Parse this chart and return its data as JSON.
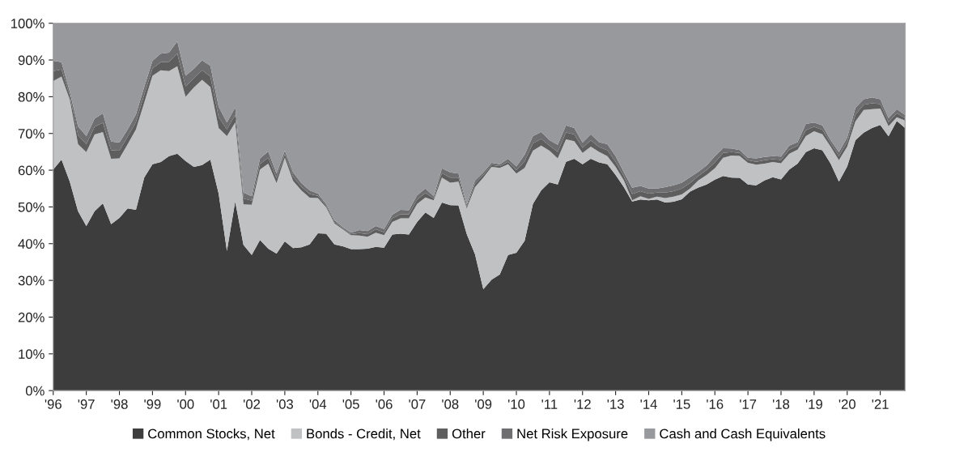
{
  "chart_data": {
    "type": "area",
    "stacked": true,
    "legend": "bottom",
    "grid": false,
    "x": [
      1996,
      1996.25,
      1996.5,
      1996.75,
      1997,
      1997.25,
      1997.5,
      1997.75,
      1998,
      1998.25,
      1998.5,
      1998.75,
      1999,
      1999.25,
      1999.5,
      1999.75,
      2000,
      2000.25,
      2000.5,
      2000.75,
      2001,
      2001.25,
      2001.5,
      2001.75,
      2002,
      2002.25,
      2002.5,
      2002.75,
      2003,
      2003.25,
      2003.5,
      2003.75,
      2004,
      2004.25,
      2004.5,
      2004.75,
      2005,
      2005.25,
      2005.5,
      2005.75,
      2006,
      2006.25,
      2006.5,
      2006.75,
      2007,
      2007.25,
      2007.5,
      2007.75,
      2008,
      2008.25,
      2008.5,
      2008.75,
      2009,
      2009.25,
      2009.5,
      2009.75,
      2010,
      2010.25,
      2010.5,
      2010.75,
      2011,
      2011.25,
      2011.5,
      2011.75,
      2012,
      2012.25,
      2012.5,
      2012.75,
      2013,
      2013.25,
      2013.5,
      2013.75,
      2014,
      2014.25,
      2014.5,
      2014.75,
      2015,
      2015.25,
      2015.5,
      2015.75,
      2016,
      2016.25,
      2016.5,
      2016.75,
      2017,
      2017.25,
      2017.5,
      2017.75,
      2018,
      2018.25,
      2018.5,
      2018.75,
      2019,
      2019.25,
      2019.5,
      2019.75,
      2020,
      2020.25,
      2020.5,
      2020.75,
      2021,
      2021.25,
      2021.5,
      2021.75
    ],
    "xlim": [
      1996,
      2021.75
    ],
    "xticks": [
      {
        "value": 1996,
        "label": "'96"
      },
      {
        "value": 1997,
        "label": "'97"
      },
      {
        "value": 1998,
        "label": "'98"
      },
      {
        "value": 1999,
        "label": "'99"
      },
      {
        "value": 2000,
        "label": "'00"
      },
      {
        "value": 2001,
        "label": "'01"
      },
      {
        "value": 2002,
        "label": "'02"
      },
      {
        "value": 2003,
        "label": "'03"
      },
      {
        "value": 2004,
        "label": "'04"
      },
      {
        "value": 2005,
        "label": "'05"
      },
      {
        "value": 2006,
        "label": "'06"
      },
      {
        "value": 2007,
        "label": "'07"
      },
      {
        "value": 2008,
        "label": "'08"
      },
      {
        "value": 2009,
        "label": "'09"
      },
      {
        "value": 2010,
        "label": "'10"
      },
      {
        "value": 2011,
        "label": "'11"
      },
      {
        "value": 2012,
        "label": "'12"
      },
      {
        "value": 2013,
        "label": "'13"
      },
      {
        "value": 2014,
        "label": "'14"
      },
      {
        "value": 2015,
        "label": "'15"
      },
      {
        "value": 2016,
        "label": "'16"
      },
      {
        "value": 2017,
        "label": "'17"
      },
      {
        "value": 2018,
        "label": "'18"
      },
      {
        "value": 2019,
        "label": "'19"
      },
      {
        "value": 2020,
        "label": "'20"
      },
      {
        "value": 2021,
        "label": "'21"
      }
    ],
    "ylim": [
      0,
      100
    ],
    "yticks": [
      {
        "value": 0,
        "label": "0%"
      },
      {
        "value": 10,
        "label": "10%"
      },
      {
        "value": 20,
        "label": "20%"
      },
      {
        "value": 30,
        "label": "30%"
      },
      {
        "value": 40,
        "label": "40%"
      },
      {
        "value": 50,
        "label": "50%"
      },
      {
        "value": 60,
        "label": "60%"
      },
      {
        "value": 70,
        "label": "70%"
      },
      {
        "value": 80,
        "label": "80%"
      },
      {
        "value": 90,
        "label": "90%"
      },
      {
        "value": 100,
        "label": "100%"
      }
    ],
    "series": [
      {
        "name": "Common Stocks, Net",
        "color": "#3d3d3d",
        "values": [
          60.2,
          62.9,
          56.9,
          48.8,
          44.8,
          48.8,
          51.0,
          45.3,
          47.0,
          49.6,
          49.2,
          58.0,
          61.6,
          62.2,
          63.8,
          64.5,
          62.5,
          60.9,
          61.4,
          62.9,
          53.6,
          38.0,
          51.5,
          39.7,
          36.9,
          41.0,
          38.6,
          37.3,
          40.6,
          38.8,
          39.0,
          39.8,
          42.8,
          42.7,
          39.8,
          39.3,
          38.5,
          38.5,
          38.6,
          39.1,
          38.9,
          42.5,
          42.7,
          42.5,
          45.9,
          48.5,
          47.0,
          51.2,
          50.5,
          50.4,
          42.6,
          37.1,
          27.6,
          30.2,
          31.6,
          36.9,
          37.5,
          40.8,
          50.8,
          54.5,
          56.7,
          56.1,
          62.3,
          63.1,
          61.6,
          63.1,
          62.1,
          61.6,
          58.7,
          55.4,
          51.5,
          52.0,
          51.8,
          52.0,
          51.2,
          51.4,
          52.1,
          54.2,
          55.3,
          56.1,
          57.4,
          58.4,
          58.0,
          57.9,
          56.1,
          55.9,
          57.2,
          58.1,
          57.5,
          60.2,
          61.8,
          64.9,
          66.0,
          65.4,
          61.8,
          56.9,
          61.0,
          68.2,
          70.2,
          71.5,
          72.3,
          69.2,
          73.4,
          71.5
        ]
      },
      {
        "name": "Bonds - Credit, Net",
        "color": "#c0c1c3",
        "values": [
          24.1,
          22.6,
          22.3,
          18.3,
          20.1,
          20.9,
          19.4,
          17.8,
          16.2,
          17.5,
          21.9,
          20.4,
          24.1,
          25.0,
          23.2,
          23.8,
          17.5,
          21.6,
          23.2,
          19.7,
          17.9,
          31.3,
          21.5,
          11.0,
          13.7,
          19.2,
          23.2,
          19.2,
          22.8,
          18.3,
          15.5,
          12.7,
          9.6,
          7.2,
          5.7,
          4.6,
          3.8,
          3.7,
          3.3,
          3.9,
          3.4,
          3.4,
          4.2,
          4.4,
          4.9,
          4.1,
          4.8,
          6.8,
          6.1,
          6.5,
          7.0,
          18.3,
          30.4,
          30.7,
          29.0,
          24.7,
          21.6,
          19.8,
          14.5,
          12.2,
          8.6,
          7.1,
          6.1,
          4.8,
          3.1,
          3.3,
          2.9,
          2.2,
          2.2,
          1.8,
          0.3,
          0.9,
          0.4,
          0.8,
          1.2,
          1.4,
          1.3,
          0.8,
          1.9,
          2.6,
          3.1,
          5.0,
          6.0,
          6.0,
          5.9,
          5.6,
          4.6,
          4.1,
          4.4,
          4.3,
          3.8,
          4.4,
          4.6,
          4.4,
          4.6,
          5.8,
          5.4,
          5.1,
          6.2,
          5.1,
          4.5,
          2.8,
          1.0,
          2.0
        ]
      },
      {
        "name": "Other",
        "color": "#5e5e5e",
        "values": [
          2.7,
          1.9,
          1.1,
          2.4,
          2.2,
          2.1,
          2.5,
          2.3,
          2.1,
          2.0,
          2.0,
          2.1,
          2.0,
          2.2,
          2.5,
          3.4,
          2.8,
          2.5,
          2.6,
          2.9,
          2.9,
          1.8,
          2.0,
          1.6,
          1.1,
          1.5,
          1.6,
          1.3,
          0.9,
          1.1,
          1.0,
          1.0,
          0.6,
          0.4,
          0.4,
          0.3,
          0.3,
          0.7,
          0.7,
          0.9,
          0.8,
          1.0,
          1.1,
          1.1,
          1.2,
          1.2,
          0.5,
          1.2,
          1.4,
          1.1,
          0.5,
          0.9,
          0.7,
          0.5,
          0.5,
          0.7,
          0.9,
          1.8,
          2.0,
          1.8,
          1.4,
          1.8,
          1.9,
          1.8,
          1.4,
          1.7,
          1.3,
          1.6,
          1.4,
          1.1,
          1.7,
          1.4,
          1.4,
          1.1,
          1.5,
          1.5,
          1.6,
          1.5,
          1.2,
          1.3,
          1.6,
          1.3,
          0.9,
          0.8,
          0.7,
          0.8,
          0.9,
          0.8,
          0.9,
          1.1,
          1.0,
          1.6,
          1.2,
          1.2,
          0.9,
          1.1,
          1.2,
          1.8,
          1.4,
          1.6,
          1.2,
          1.1,
          1.1,
          0.7
        ]
      },
      {
        "name": "Net Risk Exposure",
        "color": "#6e6e70",
        "values": [
          2.8,
          2.0,
          1.1,
          2.4,
          2.2,
          2.2,
          2.6,
          2.4,
          2.2,
          2.0,
          2.1,
          2.1,
          2.1,
          2.3,
          2.5,
          3.4,
          2.9,
          2.6,
          2.7,
          2.9,
          2.9,
          1.9,
          2.1,
          1.6,
          1.2,
          1.5,
          1.7,
          1.3,
          1.0,
          1.2,
          1.0,
          1.0,
          0.6,
          0.5,
          0.5,
          0.3,
          0.4,
          0.8,
          0.8,
          0.9,
          0.9,
          1.0,
          1.2,
          1.1,
          1.2,
          1.2,
          0.6,
          1.3,
          1.4,
          1.1,
          0.6,
          0.9,
          0.7,
          0.6,
          0.5,
          0.8,
          1.0,
          1.8,
          2.0,
          1.9,
          1.5,
          1.9,
          1.9,
          1.8,
          1.4,
          1.7,
          1.3,
          1.7,
          1.5,
          1.1,
          1.7,
          1.4,
          1.4,
          1.1,
          1.5,
          1.6,
          1.6,
          1.6,
          1.2,
          1.3,
          1.7,
          1.3,
          1.0,
          0.8,
          0.7,
          0.9,
          0.9,
          0.8,
          0.9,
          1.1,
          1.0,
          1.7,
          1.2,
          1.2,
          0.9,
          1.1,
          1.3,
          1.9,
          1.5,
          1.6,
          1.3,
          1.1,
          1.1,
          0.8
        ]
      },
      {
        "name": "Cash and Cash Equivalents",
        "color": "#98999d",
        "values": [
          10.2,
          10.6,
          18.6,
          28.1,
          30.7,
          26.0,
          24.5,
          32.2,
          32.5,
          28.9,
          24.8,
          17.4,
          10.2,
          8.3,
          8.0,
          4.9,
          14.3,
          12.4,
          10.1,
          11.6,
          22.7,
          27.0,
          22.9,
          46.1,
          47.1,
          36.8,
          34.9,
          40.9,
          34.7,
          40.6,
          43.5,
          45.5,
          46.4,
          49.2,
          53.6,
          55.5,
          57.0,
          56.3,
          56.6,
          55.2,
          56.0,
          52.1,
          50.8,
          50.9,
          46.8,
          45.0,
          47.1,
          39.5,
          40.6,
          40.9,
          49.3,
          42.8,
          40.6,
          38.0,
          38.4,
          36.9,
          39.0,
          35.8,
          30.7,
          29.6,
          31.8,
          33.1,
          27.8,
          28.5,
          32.5,
          30.2,
          32.4,
          32.9,
          36.2,
          40.6,
          44.8,
          44.3,
          45.0,
          45.0,
          44.6,
          44.1,
          43.4,
          41.9,
          40.4,
          38.7,
          36.2,
          34.0,
          34.1,
          34.5,
          36.6,
          36.8,
          36.4,
          36.2,
          36.3,
          33.3,
          32.4,
          27.4,
          27.0,
          27.8,
          31.8,
          35.1,
          31.1,
          23.0,
          20.7,
          20.2,
          20.7,
          25.8,
          23.4,
          25.0
        ]
      }
    ]
  }
}
